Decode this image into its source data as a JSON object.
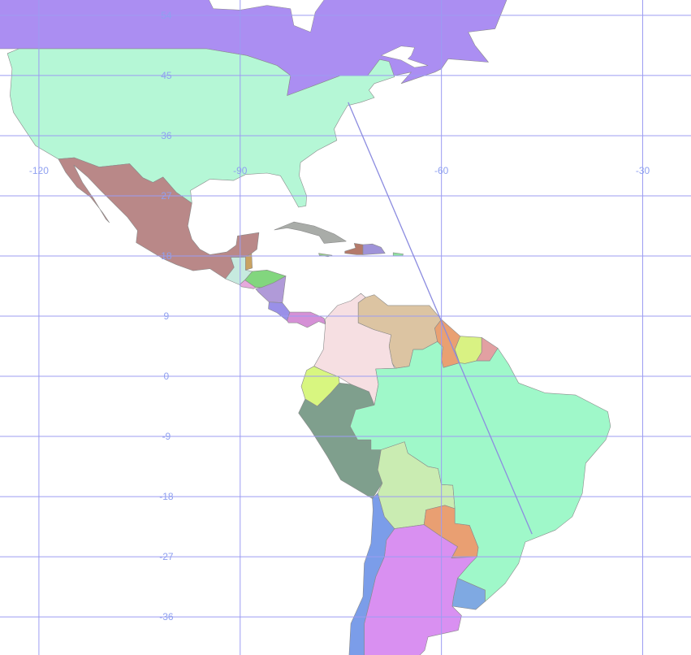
{
  "map": {
    "projection": "equirectangular",
    "lon_range": [
      -125.8,
      -22.8
    ],
    "lat_range": [
      -41.7,
      56.3
    ],
    "graticule": {
      "longitudes": [
        -120,
        -90,
        -60,
        -30
      ],
      "latitudes": [
        54,
        45,
        36,
        27,
        18,
        9,
        0,
        -9,
        -18,
        -27,
        -36
      ],
      "lon_labels": [
        "-120",
        "-90",
        "-60",
        "-30"
      ],
      "lat_labels": [
        "54",
        "45",
        "36",
        "27",
        "18",
        "9",
        "0",
        "-9",
        "-18",
        "-27",
        "-36"
      ],
      "label_lat": 30.5,
      "label_lon": -101,
      "color": "#9c9cf2",
      "label_color": "#8fa0f0"
    },
    "route": {
      "from": [
        -73.9,
        41.0
      ],
      "to": [
        -46.5,
        -23.6
      ],
      "color": "#8c8ce0"
    },
    "fills": {
      "canada": "#ab8ef2",
      "usa": "#b5f7d6",
      "mexico": "#b98888",
      "guatemala": "#c6eadf",
      "belize": "#c9a262",
      "honduras": "#82d67e",
      "el_salvador": "#e6a9dc",
      "nicaragua": "#b09ad8",
      "costa_rica": "#9a90e8",
      "panama": "#d590d6",
      "cuba": "#a9aca8",
      "jamaica": "#9cd08a",
      "haiti": "#b47a6a",
      "dominican_republic": "#9f93d8",
      "puerto_rico": "#8fe0a0",
      "colombia": "#f6dfe2",
      "venezuela": "#dcc4a2",
      "guyana": "#e9a072",
      "suriname": "#d9f283",
      "french_guiana": "#e2a0a2",
      "ecuador": "#d8f680",
      "peru": "#7f9f8d",
      "bolivia": "#caecb2",
      "paraguay": "#e99f72",
      "brazil": "#9ff8c9",
      "uruguay": "#7fa9e2",
      "argentina": "#d990f1",
      "chile": "#7b9de9"
    }
  }
}
